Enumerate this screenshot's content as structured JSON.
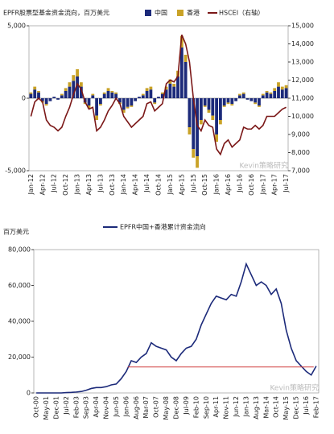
{
  "chart_data": [
    {
      "type": "bar",
      "title": "EPFR股票型基金资金流向，百万美元",
      "categories": [
        "Jan-12",
        null,
        null,
        "Apr-12",
        null,
        null,
        "Jul-12",
        null,
        null,
        "Oct-12",
        null,
        null,
        "Jan-13",
        null,
        null,
        "Apr-13",
        null,
        null,
        "Jul-13",
        null,
        null,
        "Oct-13",
        null,
        null,
        "Jan-14",
        null,
        null,
        "Apr-14",
        null,
        null,
        "Jul-14",
        null,
        null,
        "Oct-14",
        null,
        null,
        "Jan-15",
        null,
        null,
        "Apr-15",
        null,
        null,
        "Jul-15",
        null,
        null,
        "Oct-15",
        null,
        null,
        "Jan-16",
        null,
        null,
        "Apr-16",
        null,
        null,
        "Jul-16",
        null,
        null,
        "Oct-16",
        null,
        null,
        "Jan-17",
        null,
        null,
        "Apr-17",
        null,
        null,
        "Jul-17"
      ],
      "series": [
        {
          "name": "中国",
          "color": "#1c2a7a",
          "values": [
            300,
            600,
            400,
            -200,
            -400,
            -200,
            100,
            -100,
            200,
            500,
            800,
            1200,
            1500,
            800,
            -300,
            -500,
            200,
            -1200,
            -400,
            300,
            500,
            400,
            300,
            -300,
            -800,
            -600,
            -500,
            -200,
            100,
            200,
            500,
            600,
            -300,
            100,
            300,
            600,
            1000,
            800,
            1500,
            3500,
            2500,
            -2000,
            -3500,
            -4000,
            -1500,
            -500,
            -800,
            -1200,
            -2500,
            -1500,
            -500,
            -300,
            -400,
            -200,
            200,
            300,
            -100,
            -200,
            -300,
            -500,
            200,
            400,
            300,
            500,
            800,
            600,
            700
          ]
        },
        {
          "name": "香港",
          "color": "#c9a227",
          "values": [
            100,
            200,
            100,
            -100,
            -100,
            0,
            0,
            0,
            100,
            200,
            300,
            400,
            500,
            300,
            -100,
            -200,
            100,
            -300,
            -100,
            100,
            200,
            100,
            100,
            -100,
            -200,
            -100,
            -100,
            0,
            0,
            100,
            200,
            200,
            -100,
            0,
            100,
            200,
            300,
            200,
            400,
            800,
            500,
            -500,
            -600,
            -800,
            -300,
            -100,
            -200,
            -300,
            -500,
            -300,
            -100,
            -100,
            -100,
            0,
            100,
            100,
            0,
            0,
            -100,
            -100,
            100,
            100,
            100,
            200,
            300,
            200,
            200
          ]
        },
        {
          "name": "HSCEI（右轴）",
          "color": "#7b1818",
          "axis": "y2",
          "values": [
            10000,
            10800,
            11000,
            10800,
            9800,
            9500,
            9400,
            9200,
            9400,
            10000,
            10500,
            11200,
            11800,
            11500,
            10800,
            10400,
            10500,
            9200,
            9400,
            9800,
            10300,
            10600,
            11000,
            10700,
            10000,
            9700,
            9400,
            9600,
            9800,
            10000,
            10700,
            10800,
            10300,
            10500,
            10700,
            11800,
            12000,
            11900,
            12200,
            14500,
            14000,
            13000,
            11000,
            9500,
            9200,
            9800,
            9500,
            9400,
            8200,
            7900,
            8500,
            8700,
            8300,
            8500,
            8700,
            9400,
            9300,
            9300,
            9500,
            9300,
            9500,
            10000,
            10000,
            10000,
            10200,
            10400,
            10500
          ]
        }
      ],
      "ylim": [
        -5000,
        5000
      ],
      "yticks": [
        {
          "value": -5000,
          "label": "-5,000"
        },
        0,
        {
          "value": 5000,
          "label": "5,000"
        }
      ],
      "y2lim": [
        7000,
        15000
      ],
      "y2ticks": [
        {
          "value": 7000,
          "label": "7,000"
        },
        {
          "value": 8000,
          "label": "8,000"
        },
        {
          "value": 9000,
          "label": "9,000"
        },
        {
          "value": 10000,
          "label": "10,000"
        },
        {
          "value": 11000,
          "label": "11,000"
        },
        {
          "value": 12000,
          "label": "12,000"
        },
        {
          "value": 13000,
          "label": "13,000"
        },
        {
          "value": 14000,
          "label": "14,000"
        },
        {
          "value": 15000,
          "label": "15,000"
        }
      ],
      "watermark": "Kevin策略研究"
    },
    {
      "type": "line",
      "ylabel": "百万美元",
      "categories": [
        "Oct-00",
        null,
        "May-01",
        null,
        "Dec-01",
        null,
        "Jul-02",
        null,
        "Feb-03",
        null,
        "Sep-03",
        null,
        "Apr-04",
        null,
        "Nov-04",
        null,
        "Jun-05",
        null,
        "Jan-06",
        null,
        "Aug-06",
        null,
        "Mar-07",
        null,
        "Oct-07",
        null,
        "May-08",
        null,
        "Dec-08",
        null,
        "Jul-09",
        null,
        "Feb-10",
        null,
        "Sep-10",
        null,
        "Apr-11",
        null,
        "Nov-11",
        null,
        "Jun-12",
        null,
        "Jan-13",
        null,
        "Aug-13",
        null,
        "Mar-14",
        null,
        "Oct-14",
        null,
        "May-15",
        null,
        "Dec-15",
        null,
        "Jul-16",
        null,
        "Feb-17"
      ],
      "series": [
        {
          "name": "EPFR中国+香港累计资金流向",
          "color": "#1c2a7a",
          "values": [
            0,
            0,
            0,
            0,
            0,
            0,
            200,
            300,
            500,
            800,
            1500,
            2500,
            3000,
            3000,
            3500,
            4500,
            5000,
            8000,
            12000,
            18000,
            17000,
            20000,
            22000,
            28000,
            26000,
            25000,
            24000,
            20000,
            18000,
            22000,
            25000,
            26000,
            30000,
            38000,
            44000,
            50000,
            54000,
            53000,
            52000,
            55000,
            54000,
            62000,
            72000,
            66000,
            60000,
            62000,
            60000,
            55000,
            58000,
            50000,
            35000,
            25000,
            18000,
            15000,
            12000,
            10000,
            15000
          ]
        }
      ],
      "reference_line": 14500,
      "reference_color": "#d04040",
      "ylim": [
        0,
        80000
      ],
      "yticks": [
        0,
        {
          "value": 20000,
          "label": "20,000"
        },
        {
          "value": 40000,
          "label": "40,000"
        },
        {
          "value": 60000,
          "label": "60,000"
        },
        {
          "value": 80000,
          "label": "80,000"
        }
      ],
      "watermark": "Kevin策略研究"
    }
  ]
}
